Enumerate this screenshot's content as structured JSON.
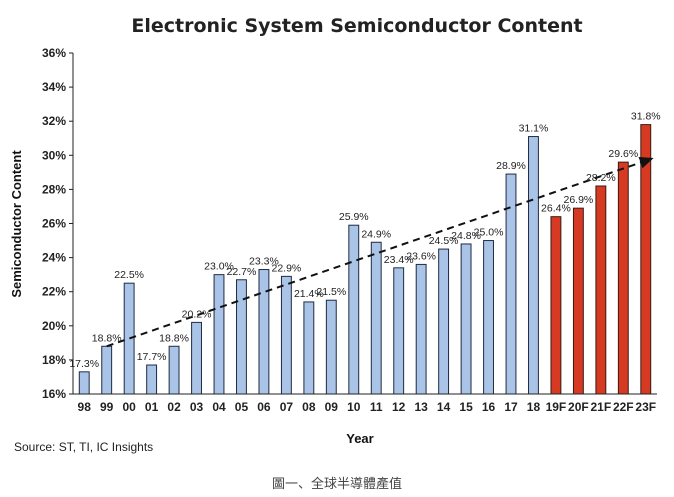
{
  "chart_data": {
    "type": "bar",
    "title": "Electronic System Semiconductor Content",
    "xlabel": "Year",
    "ylabel": "Semiconductor Content",
    "ylim": [
      16,
      36
    ],
    "y_ticks": [
      "16%",
      "18%",
      "20%",
      "22%",
      "24%",
      "26%",
      "28%",
      "30%",
      "32%",
      "34%",
      "36%"
    ],
    "categories": [
      "98",
      "99",
      "00",
      "01",
      "02",
      "03",
      "04",
      "05",
      "06",
      "07",
      "08",
      "09",
      "10",
      "11",
      "12",
      "13",
      "14",
      "15",
      "16",
      "17",
      "18",
      "19F",
      "20F",
      "21F",
      "22F",
      "23F"
    ],
    "values": [
      17.3,
      18.8,
      22.5,
      17.7,
      18.8,
      20.2,
      23.0,
      22.7,
      23.3,
      22.9,
      21.4,
      21.5,
      25.9,
      24.9,
      23.4,
      23.6,
      24.5,
      24.8,
      25.0,
      28.9,
      31.1,
      26.4,
      26.9,
      28.2,
      29.6,
      31.8
    ],
    "labels": [
      "17.3%",
      "18.8%",
      "22.5%",
      "17.7%",
      "18.8%",
      "20.2%",
      "23.0%",
      "22.7%",
      "23.3%",
      "22.9%",
      "21.4%",
      "21.5%",
      "25.9%",
      "24.9%",
      "23.4%",
      "23.6%",
      "24.5%",
      "24.8%",
      "25.0%",
      "28.9%",
      "31.1%",
      "26.4%",
      "26.9%",
      "28.2%",
      "29.6%",
      "31.8%"
    ],
    "forecast_from_index": 21,
    "trendline": {
      "start": {
        "x": "99",
        "y": 18.8
      },
      "end": {
        "x": "23F",
        "y": 29.8
      },
      "style": "dashed-arrow"
    },
    "colors": {
      "actual": "#a9c4e6",
      "actual_stroke": "#1f2a44",
      "forecast": "#d63a23",
      "forecast_stroke": "#3a1a10",
      "trend": "#111111"
    },
    "grid": false
  },
  "source": "Source: ST, TI, IC Insights",
  "caption": "圖一、全球半導體產值"
}
